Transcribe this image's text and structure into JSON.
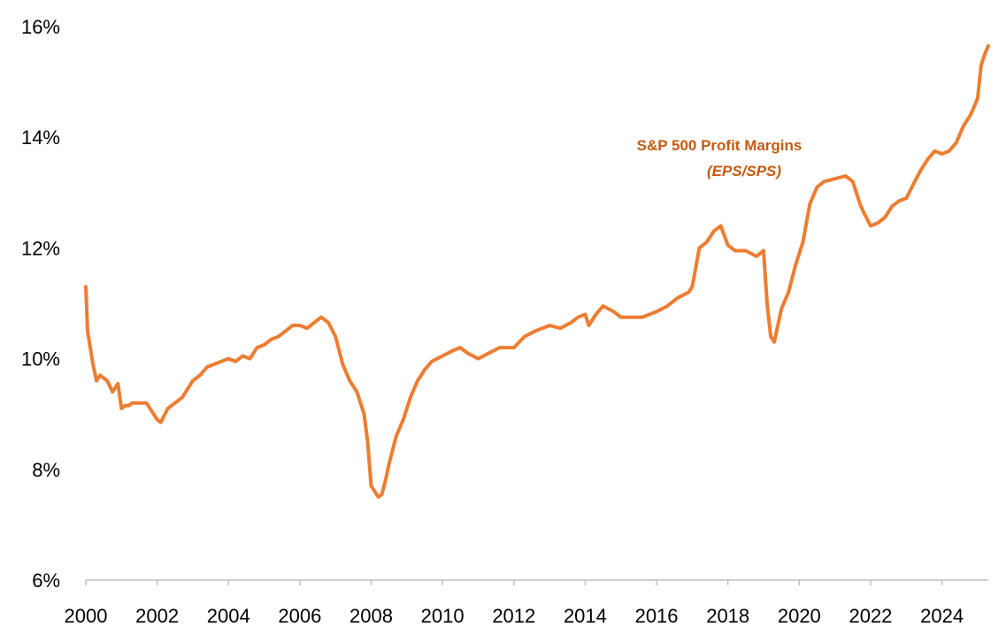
{
  "chart_data": {
    "type": "line",
    "title": "",
    "xlabel": "",
    "ylabel": "",
    "xlim": [
      2000,
      2025.3
    ],
    "ylim": [
      6,
      16
    ],
    "y_ticks": [
      6,
      8,
      10,
      12,
      14,
      16
    ],
    "y_tick_labels": [
      "6%",
      "8%",
      "10%",
      "12%",
      "14%",
      "16%"
    ],
    "x_ticks": [
      2000,
      2002,
      2004,
      2006,
      2008,
      2010,
      2012,
      2014,
      2016,
      2018,
      2020,
      2022,
      2024
    ],
    "x_tick_labels": [
      "2000",
      "2002",
      "2004",
      "2006",
      "2008",
      "2010",
      "2012",
      "2014",
      "2016",
      "2018",
      "2020",
      "2022",
      "2024"
    ],
    "grid": false,
    "legend": "none",
    "series_color": "#ED7D31",
    "annotation": {
      "line1": "S&P 500 Profit Margins",
      "line2": "(EPS/SPS)",
      "color": "#C55A11"
    },
    "series": [
      {
        "x": [
          2000.0,
          2000.05,
          2000.1,
          2000.2,
          2000.3,
          2000.4,
          2000.5,
          2000.6,
          2000.75,
          2000.9,
          2001.0,
          2001.1,
          2001.2,
          2001.3,
          2001.5,
          2001.7,
          2001.9,
          2002.0,
          2002.1,
          2002.3,
          2002.5,
          2002.7,
          2002.9,
          2003.0,
          2003.2,
          2003.4,
          2003.6,
          2003.8,
          2004.0,
          2004.2,
          2004.4,
          2004.6,
          2004.8,
          2005.0,
          2005.2,
          2005.4,
          2005.6,
          2005.8,
          2006.0,
          2006.2,
          2006.4,
          2006.6,
          2006.8,
          2007.0,
          2007.2,
          2007.4,
          2007.6,
          2007.8,
          2007.9,
          2008.0,
          2008.1,
          2008.2,
          2008.3,
          2008.4,
          2008.5,
          2008.7,
          2008.9,
          2009.1,
          2009.3,
          2009.5,
          2009.7,
          2010.0,
          2010.3,
          2010.5,
          2010.7,
          2011.0,
          2011.3,
          2011.6,
          2012.0,
          2012.3,
          2012.6,
          2013.0,
          2013.3,
          2013.6,
          2013.8,
          2014.0,
          2014.1,
          2014.3,
          2014.5,
          2014.8,
          2015.0,
          2015.3,
          2015.6,
          2016.0,
          2016.3,
          2016.6,
          2016.9,
          2017.0,
          2017.2,
          2017.4,
          2017.6,
          2017.8,
          2018.0,
          2018.2,
          2018.5,
          2018.8,
          2019.0,
          2019.1,
          2019.2,
          2019.3,
          2019.4,
          2019.5,
          2019.7,
          2019.9,
          2020.1,
          2020.3,
          2020.5,
          2020.7,
          2021.0,
          2021.3,
          2021.5,
          2021.7,
          2021.8,
          2022.0,
          2022.2,
          2022.4,
          2022.6,
          2022.8,
          2023.0,
          2023.2,
          2023.4,
          2023.6,
          2023.8,
          2024.0,
          2024.2,
          2024.4,
          2024.6,
          2024.8,
          2025.0,
          2025.1,
          2025.2,
          2025.3
        ],
        "y": [
          11.3,
          10.5,
          10.3,
          9.9,
          9.6,
          9.7,
          9.65,
          9.6,
          9.4,
          9.55,
          9.1,
          9.15,
          9.15,
          9.2,
          9.2,
          9.2,
          9.0,
          8.9,
          8.85,
          9.1,
          9.2,
          9.3,
          9.5,
          9.6,
          9.7,
          9.85,
          9.9,
          9.95,
          10.0,
          9.95,
          10.05,
          10.0,
          10.2,
          10.25,
          10.35,
          10.4,
          10.5,
          10.6,
          10.6,
          10.55,
          10.65,
          10.75,
          10.65,
          10.4,
          9.9,
          9.6,
          9.4,
          9.0,
          8.5,
          7.7,
          7.6,
          7.5,
          7.55,
          7.8,
          8.1,
          8.6,
          8.9,
          9.3,
          9.6,
          9.8,
          9.95,
          10.05,
          10.15,
          10.2,
          10.1,
          10.0,
          10.1,
          10.2,
          10.2,
          10.4,
          10.5,
          10.6,
          10.55,
          10.65,
          10.75,
          10.8,
          10.6,
          10.8,
          10.95,
          10.85,
          10.75,
          10.75,
          10.75,
          10.85,
          10.95,
          11.1,
          11.2,
          11.3,
          12.0,
          12.1,
          12.3,
          12.4,
          12.05,
          11.95,
          11.95,
          11.85,
          11.95,
          11.0,
          10.4,
          10.3,
          10.6,
          10.9,
          11.2,
          11.7,
          12.1,
          12.8,
          13.1,
          13.2,
          13.25,
          13.3,
          13.2,
          12.8,
          12.65,
          12.4,
          12.45,
          12.55,
          12.75,
          12.85,
          12.9,
          13.15,
          13.4,
          13.6,
          13.75,
          13.7,
          13.75,
          13.9,
          14.2,
          14.4,
          14.7,
          15.3,
          15.5,
          15.65
        ]
      }
    ]
  }
}
